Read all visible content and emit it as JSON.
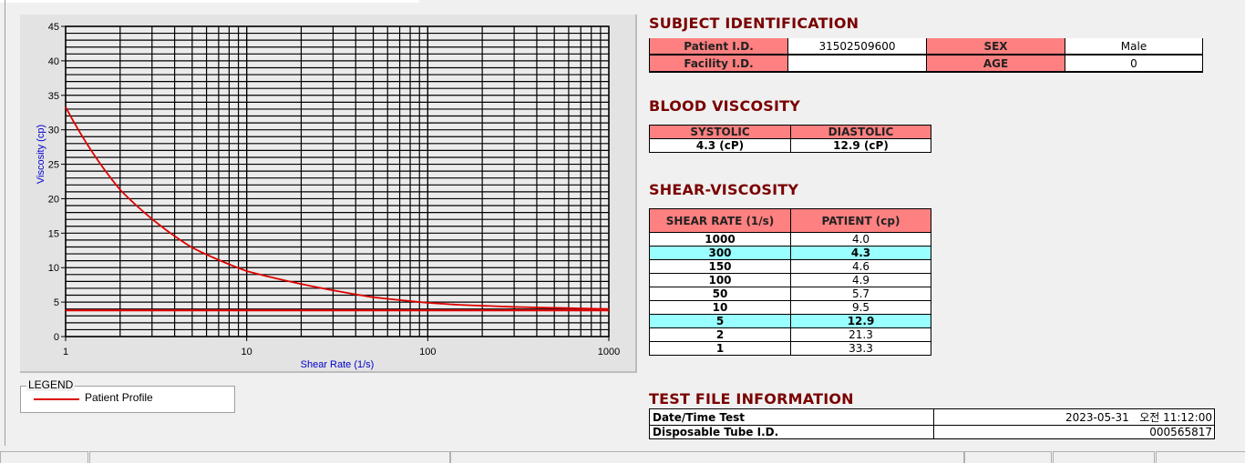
{
  "subject": {
    "title": "SUBJECT IDENTIFICATION",
    "patient_id_label": "Patient I.D.",
    "patient_id": "31502509600",
    "sex_label": "SEX",
    "sex": "Male",
    "facility_id_label": "Facility I.D.",
    "facility_id": "",
    "age_label": "AGE",
    "age": "0"
  },
  "blood": {
    "title": "BLOOD VISCOSITY",
    "systolic_label": "SYSTOLIC",
    "diastolic_label": "DIASTOLIC",
    "systolic": "4.3 (cP)",
    "diastolic": "12.9 (cP)"
  },
  "shear": {
    "title": "SHEAR-VISCOSITY",
    "col1": "SHEAR RATE (1/s)",
    "col2": "PATIENT (cp)",
    "rows": [
      {
        "rate": "1000",
        "value": "4.0",
        "highlight": false
      },
      {
        "rate": "300",
        "value": "4.3",
        "highlight": true
      },
      {
        "rate": "150",
        "value": "4.6",
        "highlight": false
      },
      {
        "rate": "100",
        "value": "4.9",
        "highlight": false
      },
      {
        "rate": "50",
        "value": "5.7",
        "highlight": false
      },
      {
        "rate": "10",
        "value": "9.5",
        "highlight": false
      },
      {
        "rate": "5",
        "value": "12.9",
        "highlight": true
      },
      {
        "rate": "2",
        "value": "21.3",
        "highlight": false
      },
      {
        "rate": "1",
        "value": "33.3",
        "highlight": false
      }
    ],
    "highlight_color": "#99ffff",
    "header_color": "#ff8080"
  },
  "testfile": {
    "title": "TEST FILE INFORMATION",
    "date_label": "Date/Time Test",
    "date": "2023-05-31   오전 11:12:00",
    "tube_label": "Disposable Tube I.D.",
    "tube": "000565817"
  },
  "legend": {
    "title": "LEGEND",
    "entry": "Patient Profile"
  },
  "chart_data": {
    "type": "line",
    "xscale": "log",
    "xlim": [
      1,
      1000
    ],
    "ylim": [
      0,
      45
    ],
    "xlabel": "Shear Rate (1/s)",
    "ylabel": "Viscosity (cp)",
    "xticks": [
      "1",
      "10",
      "100",
      "1000"
    ],
    "yticks": [
      "0",
      "5",
      "10",
      "15",
      "20",
      "25",
      "30",
      "35",
      "40",
      "45"
    ],
    "grid": true,
    "legend_position": "below",
    "series": [
      {
        "name": "Patient Profile",
        "color": "#dd0000",
        "x": [
          1,
          2,
          5,
          10,
          50,
          100,
          150,
          300,
          1000
        ],
        "y": [
          33.3,
          21.3,
          12.9,
          9.5,
          5.7,
          4.9,
          4.6,
          4.3,
          4.0
        ]
      },
      {
        "color": "#dd0000",
        "x": [
          1,
          1000
        ],
        "y": [
          3.8,
          3.8
        ]
      }
    ]
  }
}
